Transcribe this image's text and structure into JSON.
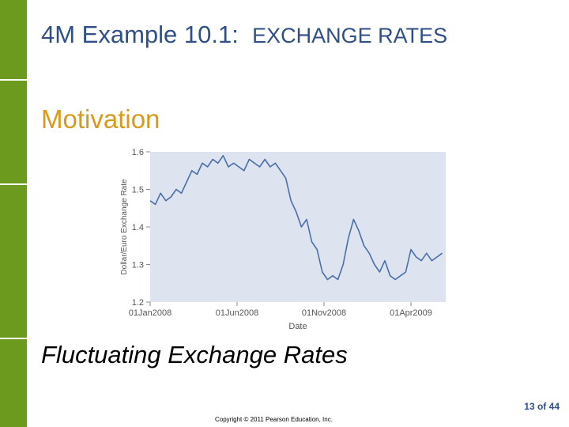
{
  "slide": {
    "title_prefix": "4M Example 10.1:",
    "title_caps": "EXCHANGE RATES",
    "subtitle": "Motivation",
    "caption": "Fluctuating Exchange Rates",
    "page_counter": "13 of 44",
    "copyright": "Copyright © 2011 Pearson Education, Inc."
  },
  "colors": {
    "sidebar": "#6b9a1f",
    "title": "#2f4f86",
    "subtitle": "#d99a1c",
    "plot_bg": "#dde4ef",
    "line": "#4a6ea9"
  },
  "chart_data": {
    "type": "line",
    "title": "",
    "xlabel": "Date",
    "ylabel": "Dollar/Euro Exchange Rate",
    "ylim": [
      1.2,
      1.6
    ],
    "yticks": [
      1.2,
      1.3,
      1.4,
      1.5,
      1.6
    ],
    "ytick_labels": [
      "1.2",
      "1.3",
      "1.4",
      "1.5",
      "1.6"
    ],
    "xlim": [
      0,
      17
    ],
    "xticks": [
      0,
      5,
      10,
      15
    ],
    "xtick_labels": [
      "01Jan2008",
      "01Jun2008",
      "01Nov2008",
      "01Apr2009"
    ],
    "x": [
      0,
      0.3,
      0.6,
      0.9,
      1.2,
      1.5,
      1.8,
      2.1,
      2.4,
      2.7,
      3.0,
      3.3,
      3.6,
      3.9,
      4.2,
      4.5,
      4.8,
      5.1,
      5.4,
      5.7,
      6.0,
      6.3,
      6.6,
      6.9,
      7.2,
      7.5,
      7.8,
      8.1,
      8.4,
      8.7,
      9.0,
      9.3,
      9.6,
      9.9,
      10.2,
      10.5,
      10.8,
      11.1,
      11.4,
      11.7,
      12.0,
      12.3,
      12.6,
      12.9,
      13.2,
      13.5,
      13.8,
      14.1,
      14.4,
      14.7,
      15.0,
      15.3,
      15.6,
      15.9,
      16.2,
      16.5,
      16.8
    ],
    "values": [
      1.47,
      1.46,
      1.49,
      1.47,
      1.48,
      1.5,
      1.49,
      1.52,
      1.55,
      1.54,
      1.57,
      1.56,
      1.58,
      1.57,
      1.59,
      1.56,
      1.57,
      1.56,
      1.55,
      1.58,
      1.57,
      1.56,
      1.58,
      1.56,
      1.57,
      1.55,
      1.53,
      1.47,
      1.44,
      1.4,
      1.42,
      1.36,
      1.34,
      1.28,
      1.26,
      1.27,
      1.26,
      1.3,
      1.37,
      1.42,
      1.39,
      1.35,
      1.33,
      1.3,
      1.28,
      1.31,
      1.27,
      1.26,
      1.27,
      1.28,
      1.34,
      1.32,
      1.31,
      1.33,
      1.31,
      1.32,
      1.33
    ]
  }
}
